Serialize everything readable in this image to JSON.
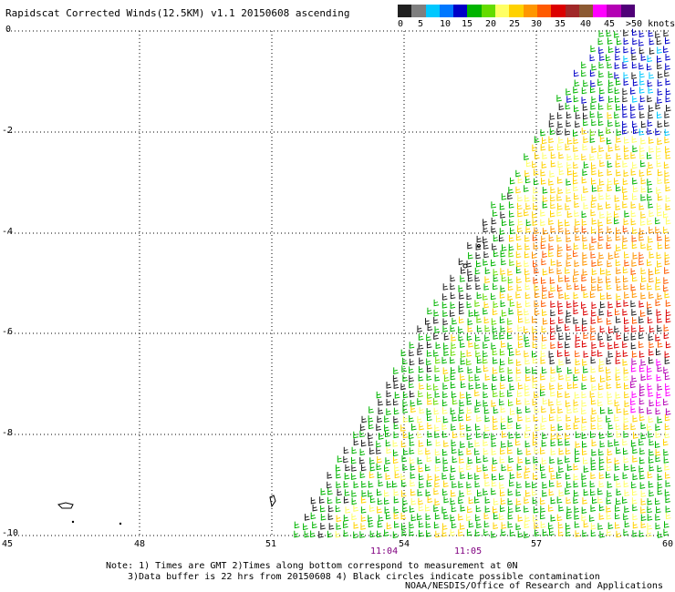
{
  "title": "Rapidscat Corrected Winds(12.5KM) v1.1 20150608 ascending",
  "legend": {
    "colors": [
      "#202020",
      "#7f7f7f",
      "#00c8ff",
      "#0078ff",
      "#0000c8",
      "#00b400",
      "#64dc00",
      "#ffff64",
      "#ffd200",
      "#ff9600",
      "#ff5a00",
      "#dc0000",
      "#a02828",
      "#8c5a32",
      "#ff00ff",
      "#b400b4",
      "#500078"
    ],
    "labels": [
      "0",
      "5",
      "10",
      "15",
      "20",
      "25",
      "30",
      "35",
      "40",
      "45",
      ">50 knots"
    ]
  },
  "axes": {
    "y_labels": [
      "0",
      "-2",
      "-4",
      "-6",
      "-8",
      "-10"
    ],
    "x_labels": [
      "45",
      "48",
      "51",
      "54",
      "57",
      "60"
    ],
    "gridlines": "dotted"
  },
  "times": [
    "11:04",
    "11:05"
  ],
  "notes": [
    "Note: 1) Times are GMT 2)Times along bottom correspond to measurement at 0N",
    "3)Data buffer is 22 hrs from 20150608 4) Black circles indicate possible contamination"
  ],
  "credit": "NOAA/NESDIS/Office of Research and Applications"
}
